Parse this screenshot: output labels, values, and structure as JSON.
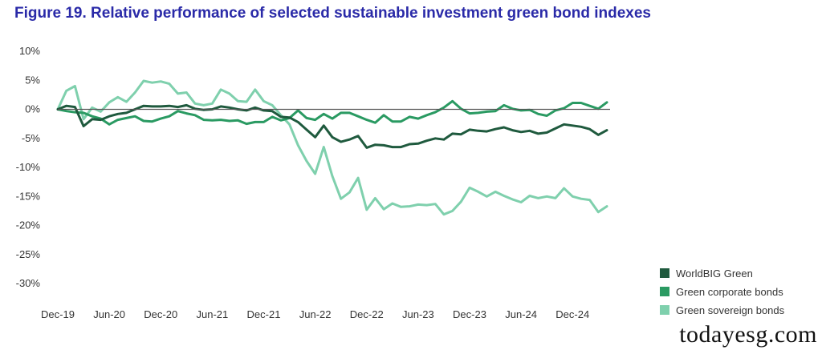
{
  "title": "Figure 19. Relative performance of selected sustainable investment green bond indexes",
  "watermark": "todayesg.com",
  "chart_data": {
    "type": "line",
    "title": "Figure 19. Relative performance of selected sustainable investment green bond indexes",
    "xlabel": "",
    "ylabel": "",
    "ylim": [
      -30,
      10
    ],
    "yticks": [
      10,
      5,
      0,
      -5,
      -10,
      -15,
      -20,
      -25,
      -30
    ],
    "ytick_labels": [
      "10%",
      "5%",
      "0%",
      "-5%",
      "-10%",
      "-15%",
      "-20%",
      "-25%",
      "-30%"
    ],
    "xticks": [
      "Dec-19",
      "Jun-20",
      "Dec-20",
      "Jun-21",
      "Dec-21",
      "Jun-22",
      "Dec-22",
      "Jun-23",
      "Dec-23",
      "Jun-24",
      "Dec-24"
    ],
    "grid": false,
    "legend_position": "bottom-right",
    "x": [
      "Dec-19",
      "Jan-20",
      "Feb-20",
      "Mar-20",
      "Apr-20",
      "May-20",
      "Jun-20",
      "Jul-20",
      "Aug-20",
      "Sep-20",
      "Oct-20",
      "Nov-20",
      "Dec-20",
      "Jan-21",
      "Feb-21",
      "Mar-21",
      "Apr-21",
      "May-21",
      "Jun-21",
      "Jul-21",
      "Aug-21",
      "Sep-21",
      "Oct-21",
      "Nov-21",
      "Dec-21",
      "Jan-22",
      "Feb-22",
      "Mar-22",
      "Apr-22",
      "May-22",
      "Jun-22",
      "Jul-22",
      "Aug-22",
      "Sep-22",
      "Oct-22",
      "Nov-22",
      "Dec-22",
      "Jan-23",
      "Feb-23",
      "Mar-23",
      "Apr-23",
      "May-23",
      "Jun-23",
      "Jul-23",
      "Aug-23",
      "Sep-23",
      "Oct-23",
      "Nov-23",
      "Dec-23",
      "Jan-24",
      "Feb-24",
      "Mar-24",
      "Apr-24",
      "May-24",
      "Jun-24",
      "Jul-24",
      "Aug-24",
      "Sep-24",
      "Oct-24",
      "Nov-24",
      "Dec-24",
      "Jan-25",
      "Feb-25",
      "Mar-25",
      "Apr-25"
    ],
    "series": [
      {
        "name": "WorldBIG Green",
        "color": "#1f5a3e",
        "values": [
          0,
          0.6,
          0.4,
          -2.9,
          -1.7,
          -1.8,
          -1.2,
          -0.8,
          -0.6,
          0,
          0.6,
          0.5,
          0.5,
          0.6,
          0.4,
          0.7,
          0.1,
          -0.1,
          0,
          0.5,
          0.3,
          0,
          -0.2,
          0.3,
          -0.2,
          -0.3,
          -1.3,
          -1.4,
          -2.2,
          -3.5,
          -4.8,
          -2.8,
          -4.8,
          -5.6,
          -5.2,
          -4.6,
          -6.6,
          -6.1,
          -6.2,
          -6.5,
          -6.5,
          -6,
          -5.9,
          -5.4,
          -5,
          -5.2,
          -4.2,
          -4.3,
          -3.5,
          -3.7,
          -3.8,
          -3.4,
          -3.1,
          -3.6,
          -3.9,
          -3.7,
          -4.2,
          -4,
          -3.3,
          -2.6,
          -2.8,
          -3,
          -3.4,
          -4.4,
          -3.6
        ]
      },
      {
        "name": "Green corporate bonds",
        "color": "#2a9a62",
        "values": [
          0,
          -0.3,
          -0.5,
          -0.6,
          -1.2,
          -1.6,
          -2.6,
          -1.8,
          -1.5,
          -1.2,
          -2,
          -2.1,
          -1.6,
          -1.2,
          -0.3,
          -0.7,
          -1,
          -1.8,
          -1.9,
          -1.8,
          -2,
          -1.9,
          -2.5,
          -2.2,
          -2.2,
          -1.3,
          -1.9,
          -1.5,
          -0.2,
          -1.5,
          -1.8,
          -0.8,
          -1.6,
          -0.6,
          -0.6,
          -1.2,
          -1.8,
          -2.3,
          -1,
          -2.1,
          -2.1,
          -1.3,
          -1.6,
          -1,
          -0.5,
          0.3,
          1.4,
          0.1,
          -0.7,
          -0.6,
          -0.4,
          -0.3,
          0.7,
          0.1,
          -0.2,
          -0.1,
          -0.8,
          -1.1,
          -0.2,
          0.2,
          1.1,
          1.1,
          0.6,
          0.1,
          1.2
        ]
      },
      {
        "name": "Green sovereign bonds",
        "color": "#7fd0ad",
        "values": [
          0,
          3.2,
          4,
          -1.7,
          0.3,
          -0.4,
          1.2,
          2.1,
          1.3,
          2.9,
          4.9,
          4.6,
          4.8,
          4.4,
          2.7,
          2.9,
          1,
          0.7,
          1,
          3.4,
          2.7,
          1.4,
          1.3,
          3.4,
          1.4,
          0.7,
          -1,
          -2.6,
          -6.2,
          -8.9,
          -11.1,
          -6.5,
          -11.5,
          -15.4,
          -14.3,
          -11.8,
          -17.3,
          -15.3,
          -17.2,
          -16.2,
          -16.8,
          -16.7,
          -16.4,
          -16.5,
          -16.3,
          -18.1,
          -17.5,
          -15.9,
          -13.5,
          -14.2,
          -15,
          -14.2,
          -14.9,
          -15.5,
          -16,
          -14.9,
          -15.3,
          -15,
          -15.3,
          -13.6,
          -15,
          -15.4,
          -15.6,
          -17.7,
          -16.7
        ]
      }
    ]
  }
}
